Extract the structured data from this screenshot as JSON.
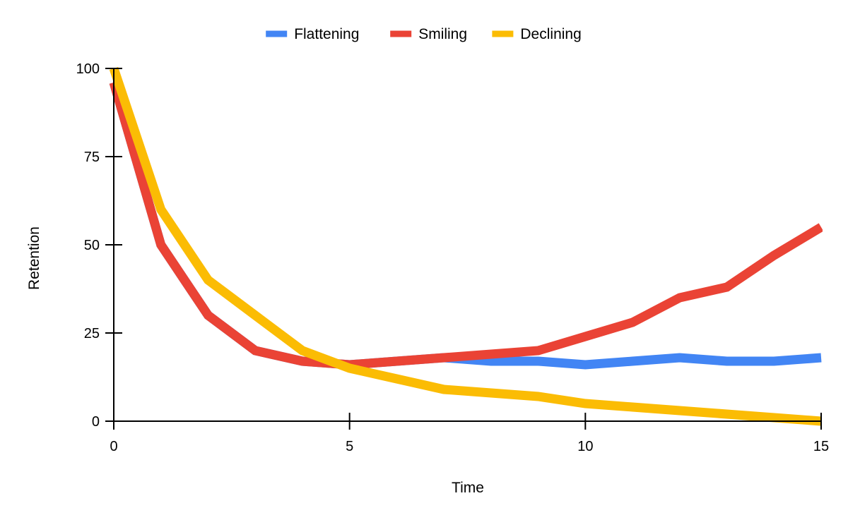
{
  "chart_data": {
    "type": "line",
    "title": "",
    "xlabel": "Time",
    "ylabel": "Retention",
    "xlim": [
      0,
      15
    ],
    "ylim": [
      0,
      100
    ],
    "x_ticks": [
      0,
      5,
      10,
      15
    ],
    "y_ticks": [
      0,
      25,
      50,
      75,
      100
    ],
    "grid": false,
    "legend_position": "top-center",
    "x": [
      0,
      1,
      2,
      3,
      4,
      5,
      6,
      7,
      8,
      9,
      10,
      11,
      12,
      13,
      14,
      15
    ],
    "series": [
      {
        "name": "Flattening",
        "color": "#4285F4",
        "values": [
          96,
          50,
          30,
          20,
          17,
          16,
          17,
          18,
          17,
          17,
          16,
          17,
          18,
          17,
          17,
          18
        ]
      },
      {
        "name": "Smiling",
        "color": "#EA4335",
        "values": [
          96,
          50,
          30,
          20,
          17,
          16,
          17,
          18,
          19,
          20,
          24,
          28,
          35,
          38,
          47,
          55
        ]
      },
      {
        "name": "Declining",
        "color": "#FBBC04",
        "values": [
          100,
          60,
          40,
          30,
          20,
          15,
          12,
          9,
          8,
          7,
          5,
          4,
          3,
          2,
          1,
          0
        ]
      }
    ]
  }
}
